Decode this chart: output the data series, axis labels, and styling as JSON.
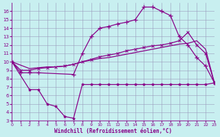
{
  "xlabel": "Windchill (Refroidissement éolien,°C)",
  "xlim": [
    0,
    23
  ],
  "ylim": [
    3,
    16.5
  ],
  "yticks": [
    3,
    4,
    5,
    6,
    7,
    8,
    9,
    10,
    11,
    12,
    13,
    14,
    15,
    16
  ],
  "xticks": [
    0,
    1,
    2,
    3,
    4,
    5,
    6,
    7,
    8,
    9,
    10,
    11,
    12,
    13,
    14,
    15,
    16,
    17,
    18,
    19,
    20,
    21,
    22,
    23
  ],
  "bg_color": "#c8eff0",
  "grid_color": "#9999bb",
  "line_color": "#880088",
  "line1_x": [
    0,
    1,
    2,
    3,
    7,
    8,
    9,
    10,
    11,
    12,
    13,
    14,
    15,
    16,
    17,
    18,
    19,
    20,
    21,
    22,
    23
  ],
  "line1_y": [
    10,
    8.7,
    8.7,
    8.7,
    8.5,
    11,
    13,
    14,
    14.2,
    14.5,
    14.7,
    15,
    16.5,
    16.5,
    16,
    15.5,
    13,
    12,
    10.5,
    9.5,
    7.5
  ],
  "line2_x": [
    0,
    1,
    2,
    3,
    4,
    5,
    6,
    7,
    8,
    9,
    10,
    11,
    12,
    13,
    14,
    15,
    16,
    17,
    18,
    19,
    20,
    21,
    22,
    23
  ],
  "line2_y": [
    10,
    9.0,
    9.0,
    9.2,
    9.3,
    9.4,
    9.5,
    9.7,
    10.0,
    10.3,
    10.6,
    10.8,
    11.0,
    11.3,
    11.5,
    11.7,
    11.9,
    12.0,
    12.2,
    12.5,
    13.5,
    12.0,
    11.0,
    7.5
  ],
  "line3_x": [
    0,
    2,
    3,
    4,
    5,
    6,
    7,
    8,
    9,
    10,
    11,
    12,
    13,
    14,
    15,
    16,
    17,
    18,
    19,
    20,
    21,
    22,
    23
  ],
  "line3_y": [
    10,
    9.2,
    9.3,
    9.4,
    9.4,
    9.5,
    9.7,
    10.0,
    10.2,
    10.4,
    10.5,
    10.7,
    10.9,
    11.1,
    11.3,
    11.5,
    11.7,
    11.9,
    12.1,
    12.2,
    12.5,
    11.5,
    7.5
  ],
  "line4_x": [
    0,
    2,
    3,
    4,
    5,
    6,
    7,
    8,
    9,
    10,
    11,
    12,
    13,
    14,
    15,
    16,
    17,
    18,
    19,
    20,
    21,
    22,
    23
  ],
  "line4_y": [
    10,
    6.7,
    6.7,
    5.0,
    4.7,
    3.5,
    3.3,
    7.3,
    7.3,
    7.3,
    7.3,
    7.3,
    7.3,
    7.3,
    7.3,
    7.3,
    7.3,
    7.3,
    7.3,
    7.3,
    7.3,
    7.3,
    7.5
  ]
}
